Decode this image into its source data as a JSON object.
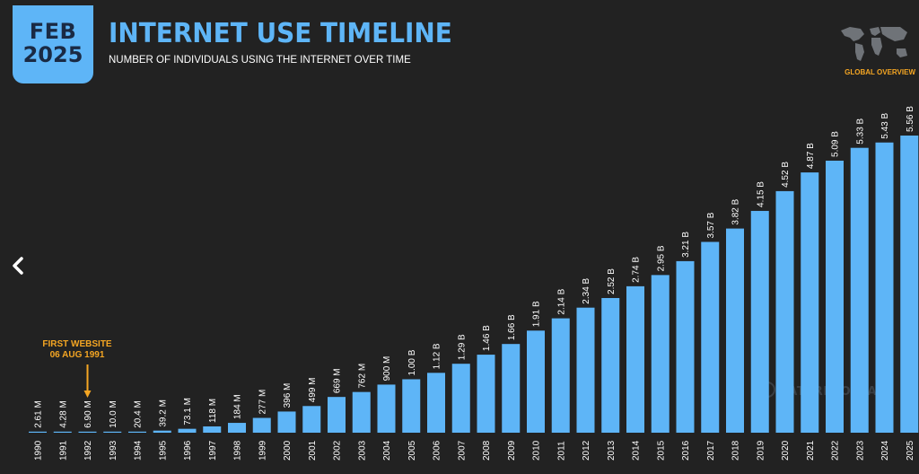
{
  "header": {
    "badge_month": "FEB",
    "badge_year": "2025",
    "title": "INTERNET USE TIMELINE",
    "subtitle": "NUMBER OF INDIVIDUALS USING THE INTERNET OVER TIME",
    "overview_label": "GLOBAL OVERVIEW"
  },
  "watermark": "DATAREPORTAL",
  "annotation": {
    "line1": "FIRST WEBSITE",
    "line2": "06 AUG 1991"
  },
  "colors": {
    "background": "#222222",
    "bar": "#5eb5f7",
    "accent": "#f5a623",
    "label": "#ffffff"
  },
  "icons": {
    "back": "chevron-left-icon",
    "map": "world-map-icon"
  },
  "chart_data": {
    "type": "bar",
    "title": "INTERNET USE TIMELINE",
    "subtitle": "NUMBER OF INDIVIDUALS USING THE INTERNET OVER TIME",
    "categories": [
      "1990",
      "1991",
      "1992",
      "1993",
      "1994",
      "1995",
      "1996",
      "1997",
      "1998",
      "1999",
      "2000",
      "2001",
      "2002",
      "2003",
      "2004",
      "2005",
      "2006",
      "2007",
      "2008",
      "2009",
      "2010",
      "2011",
      "2012",
      "2013",
      "2014",
      "2015",
      "2016",
      "2017",
      "2018",
      "2019",
      "2020",
      "2021",
      "2022",
      "2023",
      "2024",
      "2025"
    ],
    "values_millions": [
      2.61,
      4.28,
      6.9,
      10.0,
      20.4,
      39.2,
      73.1,
      118,
      184,
      277,
      396,
      499,
      669,
      762,
      900,
      1000,
      1120,
      1290,
      1460,
      1660,
      1910,
      2140,
      2340,
      2520,
      2740,
      2950,
      3210,
      3570,
      3820,
      4150,
      4520,
      4870,
      5090,
      5330,
      5430,
      5560
    ],
    "data_labels": [
      "2.61 M",
      "4.28 M",
      "6.90 M",
      "10.0 M",
      "20.4 M",
      "39.2 M",
      "73.1 M",
      "118 M",
      "184 M",
      "277 M",
      "396 M",
      "499 M",
      "669 M",
      "762 M",
      "900 M",
      "1.00 B",
      "1.12 B",
      "1.29 B",
      "1.46 B",
      "1.66 B",
      "1.91 B",
      "2.14 B",
      "2.34 B",
      "2.52 B",
      "2.74 B",
      "2.95 B",
      "3.21 B",
      "3.57 B",
      "3.82 B",
      "4.15 B",
      "4.52 B",
      "4.87 B",
      "5.09 B",
      "5.33 B",
      "5.43 B",
      "5.56 B"
    ],
    "ylim": [
      0,
      5560
    ],
    "grid": false,
    "annotation_category": "1992"
  }
}
